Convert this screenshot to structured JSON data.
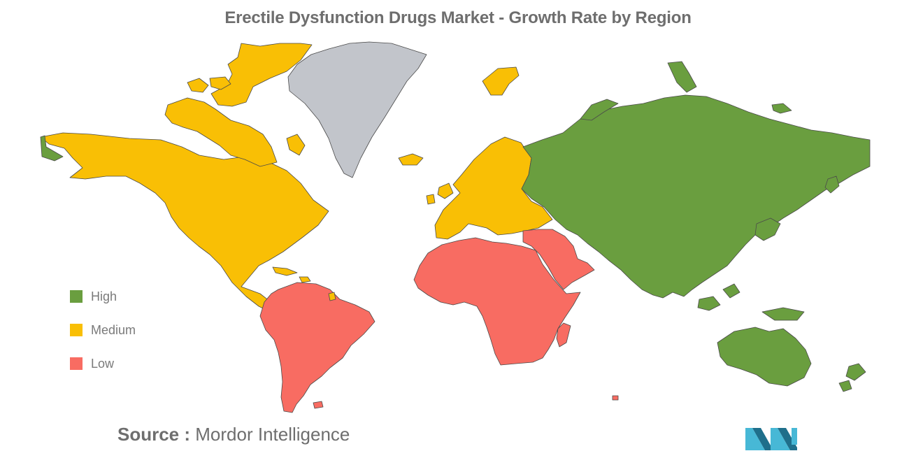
{
  "title": "Erectile Dysfunction Drugs Market - Growth Rate by Region",
  "legend": [
    {
      "label": "High",
      "color": "#6a9e3f"
    },
    {
      "label": "Medium",
      "color": "#f9bf05"
    },
    {
      "label": "Low",
      "color": "#f86c62"
    }
  ],
  "source": {
    "prefix": "Source :",
    "name": "Mordor Intelligence"
  },
  "regions": {
    "north_america": "Medium",
    "europe": "Medium",
    "south_america": "Low",
    "middle_east_africa": "Low",
    "asia_pacific": "High"
  },
  "colors": {
    "no_data": "#c2c5cb",
    "border": "#4a4a4a",
    "logo_dark": "#1f6f8b",
    "logo_light": "#47b8d6"
  }
}
